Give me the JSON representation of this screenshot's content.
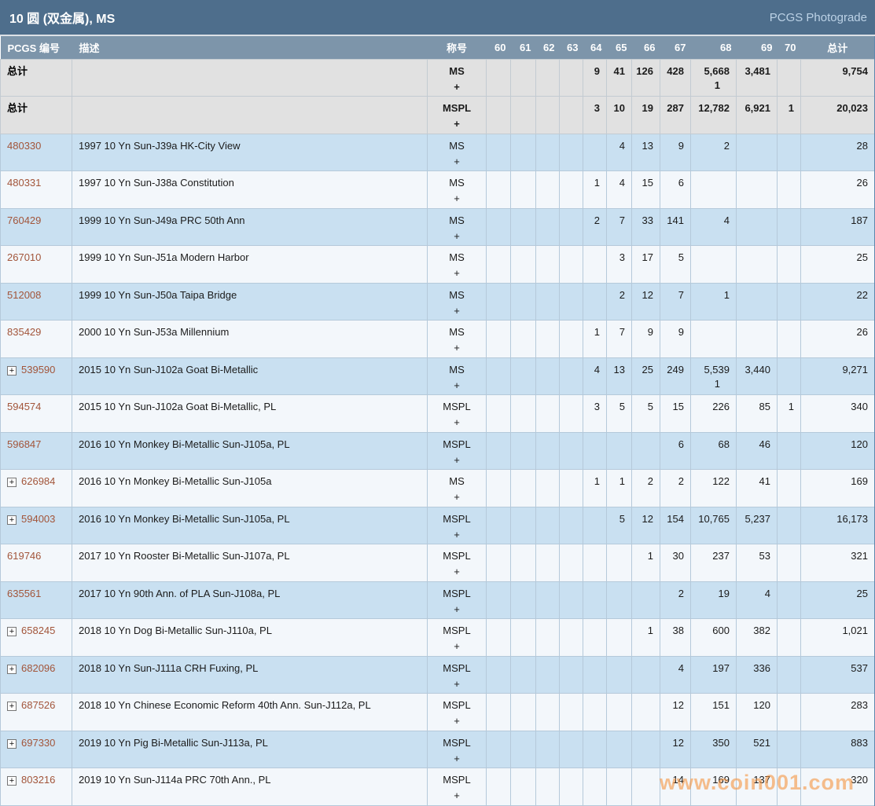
{
  "title_bar": {
    "title": "10 圆 (双金属), MS",
    "photograde_label": "PCGS Photograde"
  },
  "table": {
    "columns": [
      "PCGS 编号",
      "描述",
      "称号",
      "60",
      "61",
      "62",
      "63",
      "64",
      "65",
      "66",
      "67",
      "68",
      "69",
      "70",
      "总计"
    ],
    "grade_keys": [
      "60",
      "61",
      "62",
      "63",
      "64",
      "65",
      "66",
      "67",
      "68",
      "69",
      "70"
    ],
    "plus_symbol": "+",
    "rows": [
      {
        "kind": "total",
        "num": "总计",
        "desc": "",
        "desig": "MS",
        "expand": false,
        "grades": {
          "64": "9",
          "65": "41",
          "66": "126",
          "67": "428",
          "68": "5,668",
          "69": "3,481"
        },
        "plus_grades": {
          "68": "1"
        },
        "total": "9,754"
      },
      {
        "kind": "total",
        "num": "总计",
        "desc": "",
        "desig": "MSPL",
        "expand": false,
        "grades": {
          "64": "3",
          "65": "10",
          "66": "19",
          "67": "287",
          "68": "12,782",
          "69": "6,921",
          "70": "1"
        },
        "plus_grades": {},
        "total": "20,023"
      },
      {
        "kind": "coin",
        "num": "480330",
        "desc": "1997 10 Yn Sun-J39a HK-City View",
        "desig": "MS",
        "expand": false,
        "grades": {
          "65": "4",
          "66": "13",
          "67": "9",
          "68": "2"
        },
        "plus_grades": {},
        "total": "28"
      },
      {
        "kind": "coin",
        "num": "480331",
        "desc": "1997 10 Yn Sun-J38a Constitution",
        "desig": "MS",
        "expand": false,
        "grades": {
          "64": "1",
          "65": "4",
          "66": "15",
          "67": "6"
        },
        "plus_grades": {},
        "total": "26"
      },
      {
        "kind": "coin",
        "num": "760429",
        "desc": "1999 10 Yn Sun-J49a PRC 50th Ann",
        "desig": "MS",
        "expand": false,
        "grades": {
          "64": "2",
          "65": "7",
          "66": "33",
          "67": "141",
          "68": "4"
        },
        "plus_grades": {},
        "total": "187"
      },
      {
        "kind": "coin",
        "num": "267010",
        "desc": "1999 10 Yn Sun-J51a Modern Harbor",
        "desig": "MS",
        "expand": false,
        "grades": {
          "65": "3",
          "66": "17",
          "67": "5"
        },
        "plus_grades": {},
        "total": "25"
      },
      {
        "kind": "coin",
        "num": "512008",
        "desc": "1999 10 Yn Sun-J50a Taipa Bridge",
        "desig": "MS",
        "expand": false,
        "grades": {
          "65": "2",
          "66": "12",
          "67": "7",
          "68": "1"
        },
        "plus_grades": {},
        "total": "22"
      },
      {
        "kind": "coin",
        "num": "835429",
        "desc": "2000 10 Yn Sun-J53a Millennium",
        "desig": "MS",
        "expand": false,
        "grades": {
          "64": "1",
          "65": "7",
          "66": "9",
          "67": "9"
        },
        "plus_grades": {},
        "total": "26"
      },
      {
        "kind": "coin",
        "num": "539590",
        "desc": "2015 10 Yn Sun-J102a Goat Bi-Metallic",
        "desig": "MS",
        "expand": true,
        "grades": {
          "64": "4",
          "65": "13",
          "66": "25",
          "67": "249",
          "68": "5,539",
          "69": "3,440"
        },
        "plus_grades": {
          "68": "1"
        },
        "total": "9,271"
      },
      {
        "kind": "coin",
        "num": "594574",
        "desc": "2015 10 Yn Sun-J102a Goat Bi-Metallic, PL",
        "desig": "MSPL",
        "expand": false,
        "grades": {
          "64": "3",
          "65": "5",
          "66": "5",
          "67": "15",
          "68": "226",
          "69": "85",
          "70": "1"
        },
        "plus_grades": {},
        "total": "340"
      },
      {
        "kind": "coin",
        "num": "596847",
        "desc": "2016 10 Yn Monkey Bi-Metallic Sun-J105a, PL",
        "desig": "MSPL",
        "expand": false,
        "grades": {
          "67": "6",
          "68": "68",
          "69": "46"
        },
        "plus_grades": {},
        "total": "120"
      },
      {
        "kind": "coin",
        "num": "626984",
        "desc": "2016 10 Yn Monkey Bi-Metallic Sun-J105a",
        "desig": "MS",
        "expand": true,
        "grades": {
          "64": "1",
          "65": "1",
          "66": "2",
          "67": "2",
          "68": "122",
          "69": "41"
        },
        "plus_grades": {},
        "total": "169"
      },
      {
        "kind": "coin",
        "num": "594003",
        "desc": "2016 10 Yn Monkey Bi-Metallic Sun-J105a, PL",
        "desig": "MSPL",
        "expand": true,
        "grades": {
          "65": "5",
          "66": "12",
          "67": "154",
          "68": "10,765",
          "69": "5,237"
        },
        "plus_grades": {},
        "total": "16,173"
      },
      {
        "kind": "coin",
        "num": "619746",
        "desc": "2017 10 Yn Rooster Bi-Metallic Sun-J107a, PL",
        "desig": "MSPL",
        "expand": false,
        "grades": {
          "66": "1",
          "67": "30",
          "68": "237",
          "69": "53"
        },
        "plus_grades": {},
        "total": "321"
      },
      {
        "kind": "coin",
        "num": "635561",
        "desc": "2017 10 Yn 90th Ann. of PLA Sun-J108a, PL",
        "desig": "MSPL",
        "expand": false,
        "grades": {
          "67": "2",
          "68": "19",
          "69": "4"
        },
        "plus_grades": {},
        "total": "25"
      },
      {
        "kind": "coin",
        "num": "658245",
        "desc": "2018 10 Yn Dog Bi-Metallic Sun-J110a, PL",
        "desig": "MSPL",
        "expand": true,
        "grades": {
          "66": "1",
          "67": "38",
          "68": "600",
          "69": "382"
        },
        "plus_grades": {},
        "total": "1,021"
      },
      {
        "kind": "coin",
        "num": "682096",
        "desc": "2018 10 Yn Sun-J111a CRH Fuxing, PL",
        "desig": "MSPL",
        "expand": true,
        "grades": {
          "67": "4",
          "68": "197",
          "69": "336"
        },
        "plus_grades": {},
        "total": "537"
      },
      {
        "kind": "coin",
        "num": "687526",
        "desc": "2018 10 Yn Chinese Economic Reform 40th Ann. Sun-J112a, PL",
        "desig": "MSPL",
        "expand": true,
        "grades": {
          "67": "12",
          "68": "151",
          "69": "120"
        },
        "plus_grades": {},
        "total": "283"
      },
      {
        "kind": "coin",
        "num": "697330",
        "desc": "2019 10 Yn Pig Bi-Metallic Sun-J113a, PL",
        "desig": "MSPL",
        "expand": true,
        "grades": {
          "67": "12",
          "68": "350",
          "69": "521"
        },
        "plus_grades": {},
        "total": "883"
      },
      {
        "kind": "coin",
        "num": "803216",
        "desc": "2019 10 Yn Sun-J114a PRC 70th Ann., PL",
        "desig": "MSPL",
        "expand": true,
        "grades": {
          "67": "14",
          "68": "169",
          "69": "137"
        },
        "plus_grades": {},
        "total": "320"
      }
    ]
  },
  "watermark": "www.coin001.com",
  "colors": {
    "title_bar_bg": "#4e6e8c",
    "header_bg": "#7d95aa",
    "row_blue": "#c9e0f1",
    "row_white": "#f3f7fb",
    "row_gray": "#e1e1e1",
    "pcgs_link": "#a2553a",
    "photograde_text": "#bcd2e6",
    "cell_border": "#b5c9da",
    "table_right_border": "#5d87ad",
    "watermark_orange": "#f5923c"
  }
}
